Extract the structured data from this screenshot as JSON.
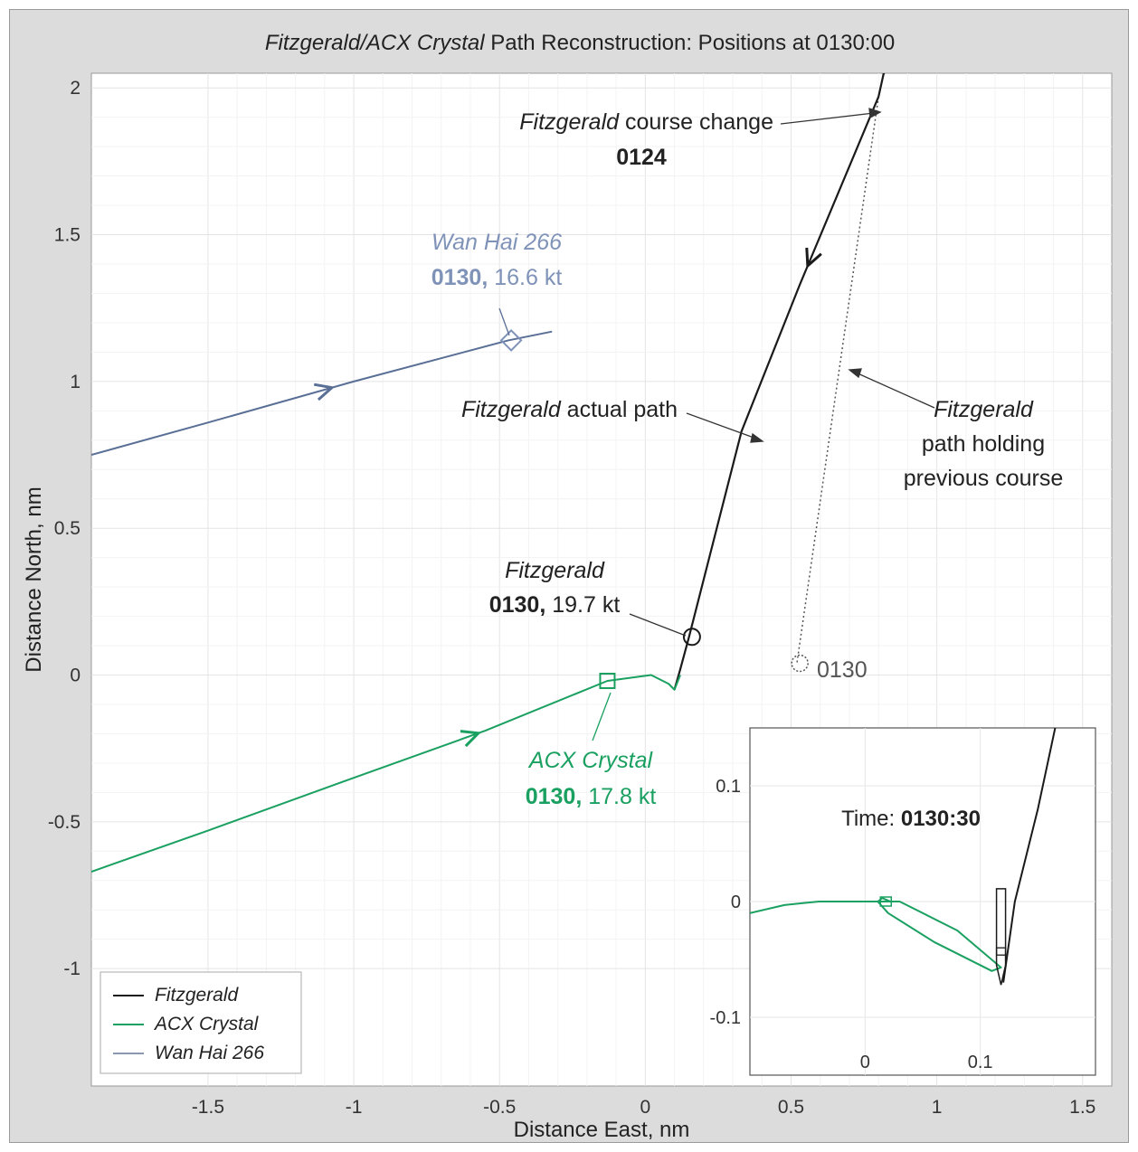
{
  "chart_data": {
    "type": "line",
    "title_italic": "Fitzgerald/ACX Crystal",
    "title_rest": " Path Reconstruction: Positions at 0130:00",
    "xlabel": "Distance East, nm",
    "ylabel": "Distance North, nm",
    "xlim": [
      -1.9,
      1.6
    ],
    "ylim": [
      -1.4,
      2.05
    ],
    "x_ticks": [
      -1.5,
      -1,
      -0.5,
      0,
      0.5,
      1,
      1.5
    ],
    "x_tick_labels": [
      "-1.5",
      "-1",
      "-0.5",
      "0",
      "0.5",
      "1",
      "1.5"
    ],
    "y_ticks": [
      -1,
      -0.5,
      0,
      0.5,
      1,
      1.5,
      2
    ],
    "y_tick_labels": [
      "-1",
      "-0.5",
      "0",
      "0.5",
      "1",
      "1.5",
      "2"
    ],
    "grid": true,
    "legend_position": "bottom-left",
    "series": [
      {
        "name": "Fitzgerald",
        "color": "#1a1a1a",
        "x": [
          0.1,
          0.12,
          0.15,
          0.33,
          0.53,
          0.8
        ],
        "y": [
          -0.05,
          0.02,
          0.13,
          0.83,
          1.33,
          1.97
        ]
      },
      {
        "name": "ACX Crystal",
        "color": "#1aa060",
        "x": [
          -1.9,
          -1.5,
          -1.0,
          -0.55,
          -0.13,
          0.02,
          0.08,
          0.1,
          0.12
        ],
        "y": [
          -0.67,
          -0.53,
          -0.35,
          -0.19,
          -0.02,
          0.0,
          -0.03,
          -0.05,
          0.0
        ]
      },
      {
        "name": "Wan Hai 266",
        "color": "#5a6f96",
        "x": [
          -1.9,
          -1.5,
          -1.0,
          -0.47,
          -0.32
        ],
        "y": [
          0.75,
          0.86,
          1.0,
          1.14,
          1.17
        ]
      }
    ],
    "fitzgerald_previous_course": {
      "color": "#555555",
      "x": [
        0.8,
        0.52
      ],
      "y": [
        1.97,
        0.04
      ]
    },
    "markers": [
      {
        "series": "Fitzgerald",
        "shape": "circle",
        "x": 0.16,
        "y": 0.13
      },
      {
        "series": "ACX Crystal",
        "shape": "square",
        "x": -0.13,
        "y": -0.02
      },
      {
        "series": "Wan Hai 266",
        "shape": "diamond",
        "x": -0.46,
        "y": 1.14
      },
      {
        "series": "Fitzgerald previous course",
        "shape": "dotted-circle",
        "x": 0.53,
        "y": 0.04
      }
    ],
    "annotations": {
      "course_change_italic": "Fitzgerald",
      "course_change_rest": " course change",
      "course_change_time": "0124",
      "actual_path_italic": "Fitzgerald",
      "actual_path_rest": " actual path",
      "prev_course_italic": "Fitzgerald",
      "prev_course_line2": "path holding",
      "prev_course_line3": "previous course",
      "wanhai_name": "Wan Hai 266",
      "wanhai_time": "0130,",
      "wanhai_speed": " 16.6 kt",
      "fitz_name": "Fitzgerald",
      "fitz_time": "0130,",
      "fitz_speed": " 19.7 kt",
      "acx_name": "ACX Crystal",
      "acx_time": "0130,",
      "acx_speed": " 17.8 kt",
      "ghost_label": "0130"
    },
    "inset": {
      "time_label": "Time: ",
      "time_value": "0130:30",
      "xlim": [
        -0.1,
        0.2
      ],
      "ylim": [
        -0.15,
        0.15
      ],
      "x_ticks": [
        0,
        0.1
      ],
      "x_tick_labels": [
        "0",
        "0.1"
      ],
      "y_ticks": [
        -0.1,
        0,
        0.1
      ],
      "y_tick_labels": [
        "-0.1",
        "0",
        "0.1"
      ],
      "fitzgerald": {
        "x": [
          0.12,
          0.13,
          0.15,
          0.165
        ],
        "y": [
          -0.07,
          0.0,
          0.08,
          0.15
        ]
      },
      "acx_crystal": {
        "x": [
          -0.1,
          -0.07,
          -0.04,
          0.0,
          0.03,
          0.08,
          0.118,
          0.11,
          0.06,
          0.02,
          0.011,
          0.015,
          0.022
        ],
        "y": [
          -0.01,
          -0.003,
          0.0,
          0.0,
          0.0,
          -0.025,
          -0.057,
          -0.06,
          -0.035,
          -0.01,
          0.0,
          0.003,
          0.0
        ]
      }
    }
  }
}
